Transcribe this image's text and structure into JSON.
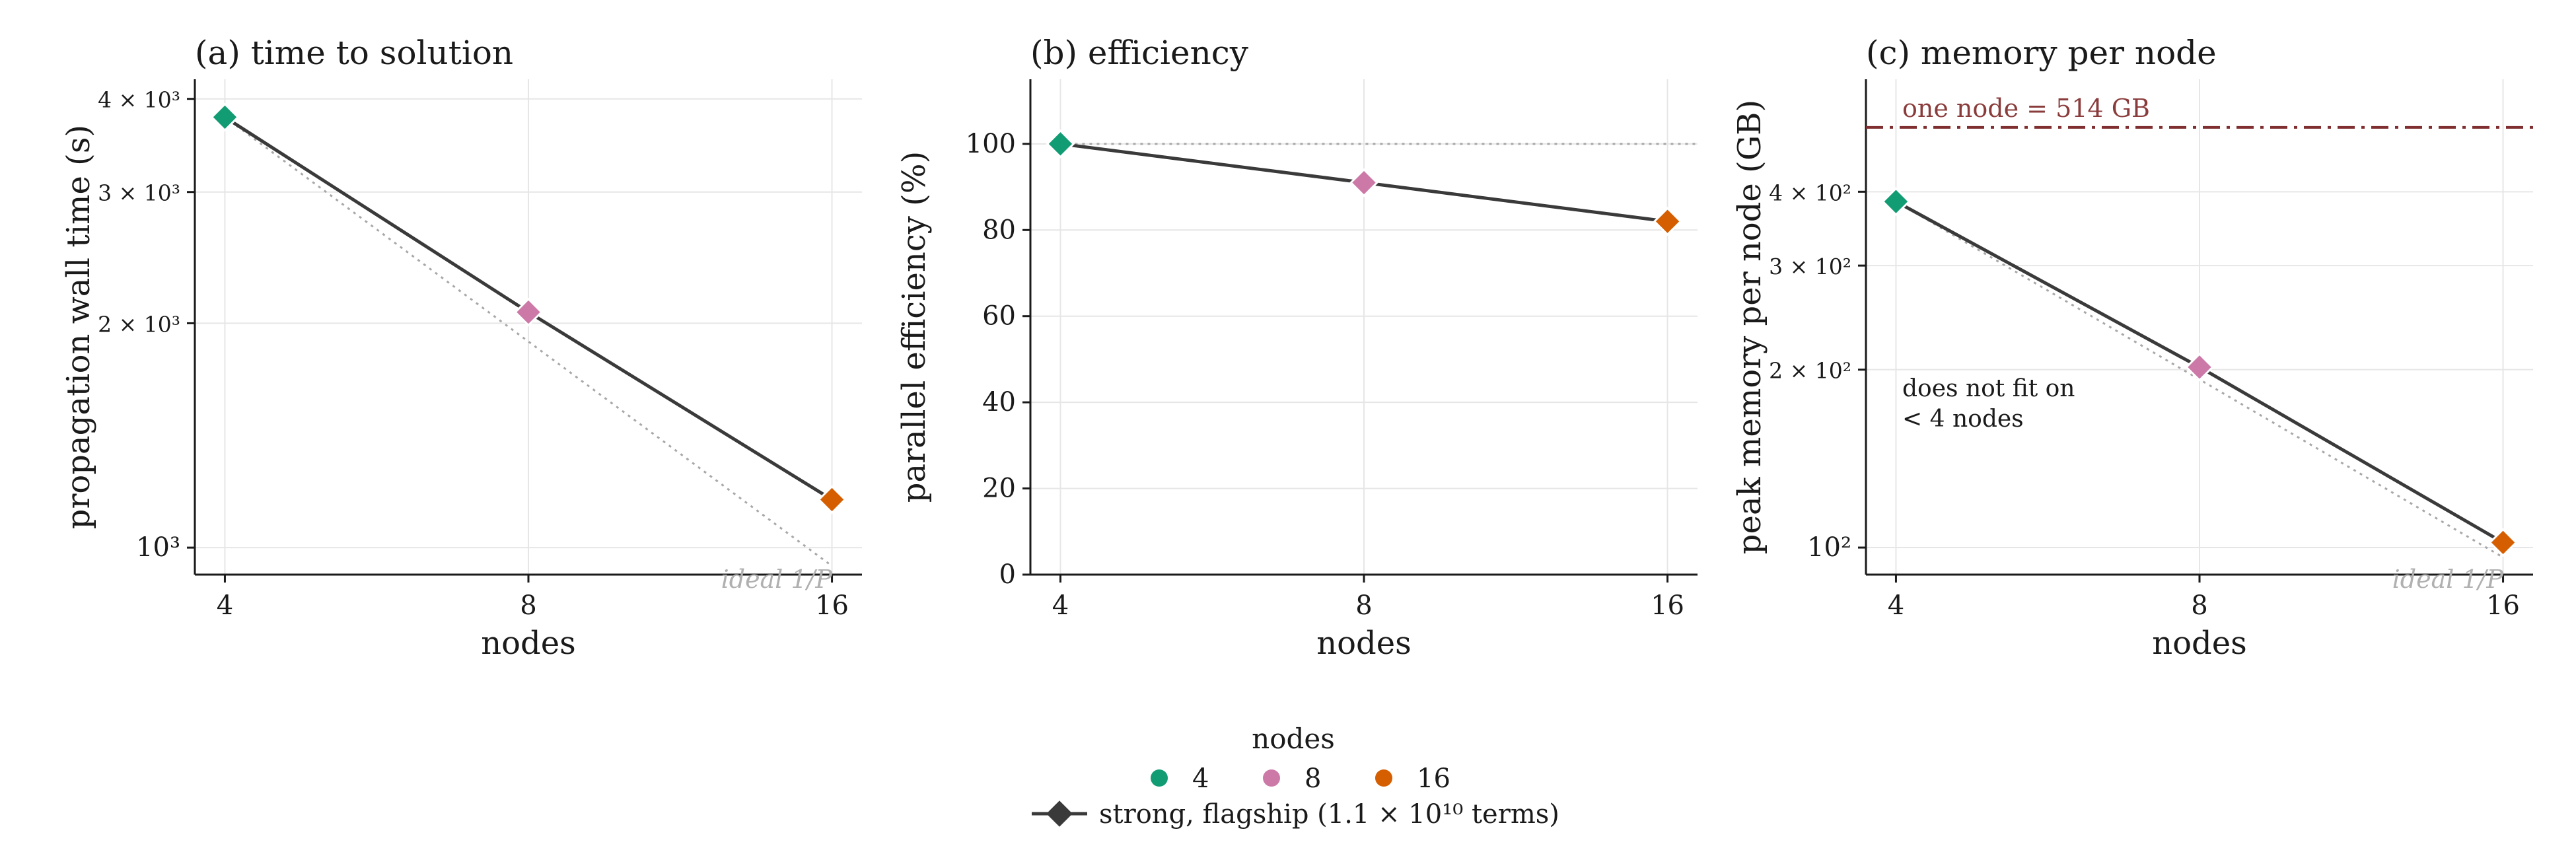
{
  "chart_data": [
    {
      "type": "line",
      "title": "(a) time to solution",
      "xlabel": "nodes",
      "ylabel": "propagation wall time (s)",
      "xscale": "log2",
      "yscale": "log",
      "x": [
        4,
        8,
        16
      ],
      "xticks": [
        "4",
        "8",
        "16"
      ],
      "yticks": [
        {
          "value": 1000,
          "label": "10³"
        },
        {
          "value": 2000,
          "label": "2 × 10³"
        },
        {
          "value": 3000,
          "label": "3 × 10³"
        },
        {
          "value": 4000,
          "label": "4 × 10³"
        }
      ],
      "series": [
        {
          "values": [
            3780,
            2070,
            1160
          ]
        }
      ],
      "ideal": {
        "label": "ideal 1/P",
        "values": [
          3780,
          1890,
          945
        ]
      },
      "grid": true
    },
    {
      "type": "line",
      "title": "(b) efficiency",
      "xlabel": "nodes",
      "ylabel": "parallel efficiency (%)",
      "xscale": "log2",
      "yscale": "linear",
      "ylim": [
        0,
        115
      ],
      "x": [
        4,
        8,
        16
      ],
      "xticks": [
        "4",
        "8",
        "16"
      ],
      "yticks": [
        {
          "value": 0,
          "label": "0"
        },
        {
          "value": 20,
          "label": "20"
        },
        {
          "value": 40,
          "label": "40"
        },
        {
          "value": 60,
          "label": "60"
        },
        {
          "value": 80,
          "label": "80"
        },
        {
          "value": 100,
          "label": "100"
        }
      ],
      "series": [
        {
          "values": [
            100,
            91,
            82
          ]
        }
      ],
      "ideal_line": 100,
      "grid": true
    },
    {
      "type": "line",
      "title": "(c) memory per node",
      "xlabel": "nodes",
      "ylabel": "peak memory per node (GB)",
      "xscale": "log2",
      "yscale": "log",
      "x": [
        4,
        8,
        16
      ],
      "xticks": [
        "4",
        "8",
        "16"
      ],
      "yticks": [
        {
          "value": 100,
          "label": "10²"
        },
        {
          "value": 200,
          "label": "2 × 10²"
        },
        {
          "value": 300,
          "label": "3 × 10²"
        },
        {
          "value": 400,
          "label": "4 × 10²"
        }
      ],
      "series": [
        {
          "values": [
            385,
            202,
            102
          ]
        }
      ],
      "ideal": {
        "label": "ideal 1/P",
        "values": [
          385,
          192.5,
          96.25
        ]
      },
      "reference_line": {
        "value": 514,
        "label": "one node = 514 GB",
        "color": "#7f2f2f"
      },
      "annotation": [
        "does not fit on",
        "< 4 nodes"
      ],
      "grid": true
    }
  ],
  "legend": {
    "title": "nodes",
    "placement": "bottom-center",
    "items": [
      {
        "label": "4",
        "color": "#129c73"
      },
      {
        "label": "8",
        "color": "#cc79a7"
      },
      {
        "label": "16",
        "color": "#d55e00"
      }
    ],
    "line_label": "strong, flagship (1.1 × 10¹⁰ terms)"
  },
  "colors": {
    "node_4": "#129c73",
    "node_8": "#cc79a7",
    "node_16": "#d55e00",
    "line": "#3a3a3a"
  }
}
